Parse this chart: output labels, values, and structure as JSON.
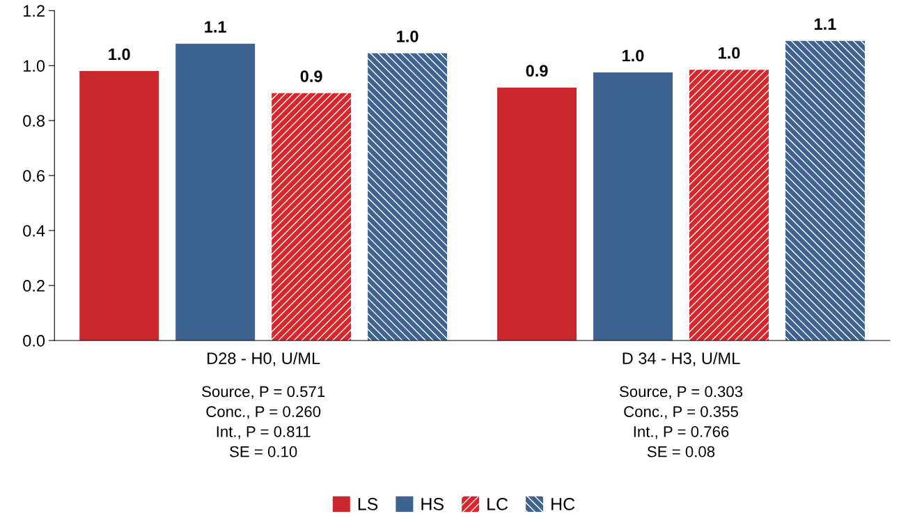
{
  "chart_data": {
    "type": "bar",
    "categories": [
      "D28 - H0, U/ML",
      "D 34 - H3, U/ML"
    ],
    "series": [
      {
        "name": "LS",
        "color": "#c9282d",
        "values": [
          0.98,
          0.92
        ],
        "value_labels": [
          "1.0",
          "0.9"
        ]
      },
      {
        "name": "HS",
        "color": "#3e6390",
        "values": [
          1.08,
          0.975
        ],
        "value_labels": [
          "1.1",
          "1.0"
        ]
      },
      {
        "name": "LC",
        "color": "#d9262c",
        "values": [
          0.9,
          0.985
        ],
        "value_labels": [
          "0.9",
          "1.0"
        ]
      },
      {
        "name": "HC",
        "color": "#3e6390",
        "values": [
          1.045,
          1.09
        ],
        "value_labels": [
          "1.0",
          "1.1"
        ]
      }
    ],
    "ylim": [
      0,
      1.2
    ],
    "yticks": [
      {
        "value": 0,
        "label": "0.0"
      },
      {
        "value": 0.2,
        "label": "0.2"
      },
      {
        "value": 0.4,
        "label": "0.4"
      },
      {
        "value": 0.6,
        "label": "0.6"
      },
      {
        "value": 0.8,
        "label": "0.8"
      },
      {
        "value": 1.0,
        "label": "1.0"
      },
      {
        "value": 1.2,
        "label": "1.2"
      }
    ],
    "grid": false,
    "legend": "bottom",
    "annotations": [
      "Source, P = 0.571\nConc., P = 0.260\nInt., P = 0.811\nSE = 0.10",
      "Source, P = 0.303\nConc., P = 0.355\nInt., P = 0.766\nSE = 0.08"
    ]
  }
}
